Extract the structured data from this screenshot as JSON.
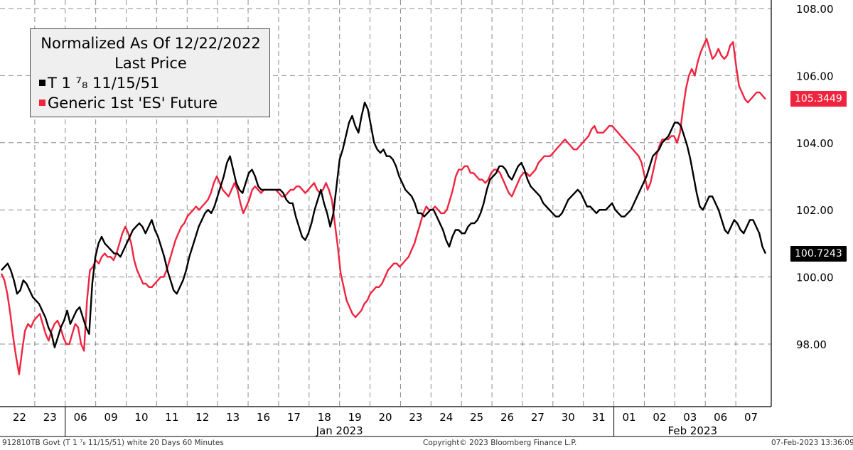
{
  "legend": {
    "title": "Normalized As Of 12/22/2022",
    "subtitle": "Last Price",
    "series": [
      {
        "label": "T 1 ⁷₈ 11/15/51",
        "color": "#000000"
      },
      {
        "label": "Generic 1st 'ES' Future",
        "color": "#f0243f"
      }
    ]
  },
  "last_values": {
    "es": "105.3449",
    "bond": "100.7243"
  },
  "footer": {
    "left": "912810TB Govt (T 1 ⁷₈ 11/15/51) white 20 Days 60 Minutes",
    "center": "Copyright© 2023 Bloomberg Finance L.P.",
    "right": "07-Feb-2023 13:36:09"
  },
  "chart_data": {
    "type": "line",
    "ylim": [
      96.0,
      108.2
    ],
    "y_ticks": [
      "98.00",
      "100.00",
      "102.00",
      "104.00",
      "106.00",
      "108.00"
    ],
    "y_tick_values": [
      98,
      100,
      102,
      104,
      106,
      108
    ],
    "x_tick_labels": [
      "22",
      "23",
      "06",
      "09",
      "10",
      "11",
      "12",
      "13",
      "16",
      "17",
      "18",
      "19",
      "20",
      "23",
      "24",
      "25",
      "26",
      "27",
      "30",
      "31",
      "01",
      "02",
      "03",
      "06",
      "07"
    ],
    "month_labels": [
      "Jan 2023",
      "Feb 2023"
    ],
    "grid": true,
    "series": [
      {
        "name": "T 1 ⁷₈ 11/15/51",
        "color": "#000000",
        "values": [
          100.2,
          100.3,
          100.4,
          100.2,
          99.9,
          99.5,
          99.6,
          99.9,
          99.8,
          99.6,
          99.4,
          99.3,
          99.2,
          99.0,
          98.8,
          98.5,
          98.3,
          97.9,
          98.2,
          98.5,
          98.7,
          99.0,
          98.6,
          98.8,
          99.0,
          99.1,
          98.8,
          98.5,
          98.3,
          99.8,
          100.6,
          101.0,
          101.2,
          101.0,
          100.9,
          100.8,
          100.7,
          100.7,
          100.6,
          100.8,
          101.0,
          101.2,
          101.4,
          101.5,
          101.6,
          101.5,
          101.3,
          101.5,
          101.7,
          101.4,
          101.2,
          100.9,
          100.6,
          100.2,
          99.9,
          99.6,
          99.5,
          99.7,
          99.9,
          100.2,
          100.6,
          100.9,
          101.2,
          101.5,
          101.7,
          101.9,
          102.0,
          101.9,
          102.1,
          102.4,
          102.7,
          103.0,
          103.4,
          103.6,
          103.2,
          102.8,
          102.6,
          102.5,
          102.8,
          103.1,
          103.2,
          103.0,
          102.7,
          102.6,
          102.6,
          102.6,
          102.6,
          102.6,
          102.6,
          102.6,
          102.5,
          102.3,
          102.2,
          102.2,
          101.8,
          101.5,
          101.2,
          101.1,
          101.3,
          101.6,
          102.0,
          102.3,
          102.6,
          102.2,
          101.9,
          101.5,
          101.9,
          102.7,
          103.5,
          103.8,
          104.2,
          104.6,
          104.8,
          104.5,
          104.3,
          104.8,
          105.2,
          105.0,
          104.5,
          104.0,
          103.8,
          103.7,
          103.8,
          103.6,
          103.6,
          103.5,
          103.3,
          103.0,
          102.8,
          102.6,
          102.5,
          102.4,
          102.2,
          101.9,
          101.9,
          101.8,
          101.9,
          102.0,
          102.0,
          101.8,
          101.6,
          101.4,
          101.1,
          100.9,
          101.2,
          101.4,
          101.4,
          101.3,
          101.3,
          101.5,
          101.6,
          101.6,
          101.7,
          101.9,
          102.2,
          102.6,
          102.9,
          103.0,
          103.1,
          103.3,
          103.3,
          103.2,
          103.0,
          102.9,
          103.1,
          103.3,
          103.4,
          103.2,
          102.9,
          102.7,
          102.6,
          102.5,
          102.4,
          102.2,
          102.1,
          102.0,
          101.9,
          101.8,
          101.8,
          101.9,
          102.1,
          102.3,
          102.4,
          102.5,
          102.6,
          102.5,
          102.3,
          102.1,
          102.1,
          102.0,
          101.9,
          102.0,
          102.0,
          102.0,
          102.1,
          102.2,
          102.0,
          101.9,
          101.8,
          101.8,
          101.9,
          102.0,
          102.2,
          102.4,
          102.6,
          102.8,
          103.0,
          103.3,
          103.6,
          103.7,
          103.8,
          104.0,
          104.1,
          104.2,
          104.4,
          104.6,
          104.6,
          104.5,
          104.2,
          103.9,
          103.5,
          103.0,
          102.5,
          102.1,
          102.0,
          102.2,
          102.4,
          102.4,
          102.2,
          102.0,
          101.7,
          101.4,
          101.3,
          101.5,
          101.7,
          101.6,
          101.4,
          101.3,
          101.5,
          101.7,
          101.7,
          101.5,
          101.3,
          100.9,
          100.7
        ]
      },
      {
        "name": "Generic 1st 'ES' Future",
        "color": "#f0243f",
        "values": [
          100.1,
          99.9,
          99.5,
          98.9,
          98.2,
          97.6,
          97.1,
          97.8,
          98.4,
          98.6,
          98.5,
          98.7,
          98.8,
          98.9,
          98.6,
          98.3,
          98.1,
          98.4,
          98.6,
          98.7,
          98.5,
          98.2,
          98.0,
          98.0,
          98.3,
          98.6,
          98.5,
          98.0,
          97.8,
          99.3,
          100.2,
          100.3,
          100.5,
          100.4,
          100.6,
          100.7,
          100.6,
          100.6,
          100.5,
          100.7,
          101.0,
          101.3,
          101.5,
          101.3,
          101.0,
          100.5,
          100.2,
          100.0,
          99.8,
          99.8,
          99.7,
          99.7,
          99.8,
          99.9,
          100.0,
          100.0,
          100.2,
          100.5,
          100.8,
          101.1,
          101.3,
          101.5,
          101.6,
          101.8,
          101.9,
          102.0,
          102.1,
          102.0,
          102.1,
          102.2,
          102.3,
          102.5,
          102.8,
          103.0,
          102.8,
          102.6,
          102.5,
          102.4,
          102.6,
          102.8,
          102.6,
          102.2,
          101.9,
          102.1,
          102.3,
          102.6,
          102.7,
          102.6,
          102.5,
          102.6,
          102.6,
          102.6,
          102.6,
          102.6,
          102.5,
          102.4,
          102.4,
          102.5,
          102.6,
          102.6,
          102.7,
          102.7,
          102.6,
          102.5,
          102.6,
          102.7,
          102.8,
          102.6,
          102.5,
          102.6,
          102.8,
          102.6,
          102.3,
          101.6,
          100.9,
          100.1,
          99.7,
          99.3,
          99.1,
          98.9,
          98.8,
          98.9,
          99.0,
          99.2,
          99.3,
          99.5,
          99.6,
          99.7,
          99.7,
          99.8,
          100.0,
          100.2,
          100.3,
          100.4,
          100.4,
          100.3,
          100.4,
          100.5,
          100.6,
          100.8,
          101.0,
          101.3,
          101.6,
          101.9,
          102.1,
          102.0,
          102.0,
          102.1,
          102.0,
          101.9,
          101.9,
          102.0,
          102.3,
          102.6,
          103.0,
          103.2,
          103.2,
          103.3,
          103.3,
          103.1,
          103.1,
          103.0,
          102.9,
          102.9,
          102.8,
          102.9,
          103.1,
          103.2,
          103.2,
          103.1,
          102.9,
          102.7,
          102.5,
          102.4,
          102.6,
          102.8,
          103.0,
          103.1,
          103.1,
          103.0,
          103.1,
          103.2,
          103.4,
          103.5,
          103.6,
          103.6,
          103.6,
          103.7,
          103.8,
          103.9,
          104.0,
          104.1,
          104.0,
          103.9,
          103.8,
          103.8,
          103.9,
          104.0,
          104.1,
          104.2,
          104.4,
          104.5,
          104.3,
          104.3,
          104.3,
          104.4,
          104.5,
          104.5,
          104.4,
          104.3,
          104.2,
          104.1,
          104.0,
          103.9,
          103.8,
          103.7,
          103.6,
          103.4,
          103.0,
          102.6,
          102.8,
          103.2,
          103.6,
          103.9,
          104.1,
          104.1,
          104.1,
          104.2,
          104.2,
          104.0,
          104.3,
          105.0,
          105.6,
          106.0,
          106.2,
          106.0,
          106.4,
          106.7,
          106.9,
          107.1,
          106.8,
          106.5,
          106.6,
          106.8,
          106.6,
          106.5,
          106.6,
          106.9,
          107.0,
          106.3,
          105.7,
          105.5,
          105.3,
          105.2,
          105.3,
          105.4,
          105.5,
          105.5,
          105.4,
          105.3
        ]
      }
    ]
  }
}
